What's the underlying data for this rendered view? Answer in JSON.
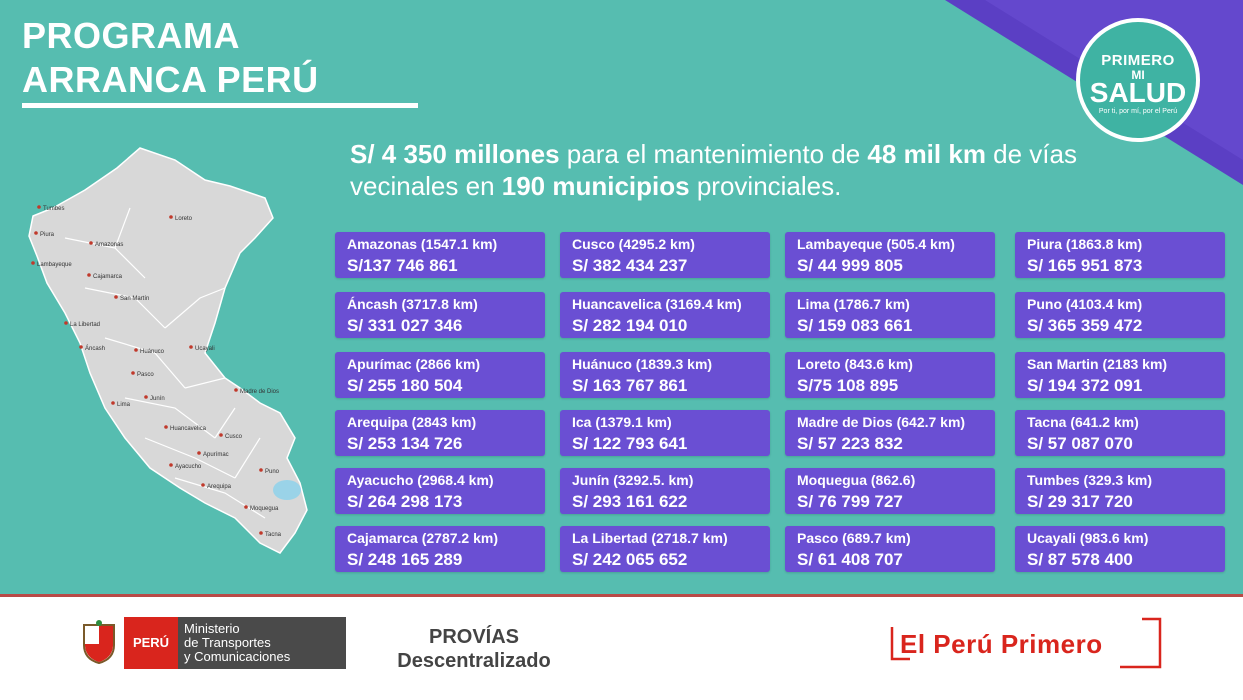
{
  "title": {
    "line1": "PROGRAMA",
    "line2": "ARRANCA PERÚ"
  },
  "seal": {
    "line1": "PRIMERO",
    "line2": "MI",
    "line3": "SALUD",
    "tagline": "Por ti, por mí, por el Perú"
  },
  "headline": {
    "amount": "S/ 4 350 millones",
    "text1": " para el mantenimiento de ",
    "distance": "48 mil km",
    "text2": " de vías vecinales en ",
    "municipalities": "190 municipios",
    "text3": " provinciales."
  },
  "map": {
    "labels": [
      "Tumbes",
      "Piura",
      "Lambayeque",
      "Amazonas",
      "Loreto",
      "Cajamarca",
      "San Martín",
      "La Libertad",
      "Áncash",
      "Huánuco",
      "Ucayali",
      "Pasco",
      "Lima",
      "Junín",
      "Huancavelica",
      "Madre de Dios",
      "Cusco",
      "Apurímac",
      "Ayacucho",
      "Arequipa",
      "Puno",
      "Moquegua",
      "Tacna"
    ]
  },
  "regions": [
    {
      "name": "Amazonas (1547.1 km)",
      "amount": "S/137 746 861"
    },
    {
      "name": "Áncash (3717.8 km)",
      "amount": "S/ 331 027 346"
    },
    {
      "name": "Apurímac (2866 km)",
      "amount": "S/ 255 180 504"
    },
    {
      "name": "Arequipa (2843 km)",
      "amount": "S/ 253 134 726"
    },
    {
      "name": "Ayacucho (2968.4 km)",
      "amount": "S/ 264 298 173"
    },
    {
      "name": "Cajamarca (2787.2 km)",
      "amount": "S/ 248 165 289"
    },
    {
      "name": "Cusco (4295.2 km)",
      "amount": "S/ 382 434 237"
    },
    {
      "name": "Huancavelica (3169.4 km)",
      "amount": "S/ 282 194 010"
    },
    {
      "name": "Huánuco (1839.3 km)",
      "amount": "S/ 163 767 861"
    },
    {
      "name": "Ica (1379.1 km)",
      "amount": "S/ 122 793 641"
    },
    {
      "name": "Junín (3292.5. km)",
      "amount": "S/ 293 161 622"
    },
    {
      "name": "La Libertad (2718.7 km)",
      "amount": "S/ 242 065 652"
    },
    {
      "name": "Lambayeque (505.4 km)",
      "amount": "S/ 44 999 805"
    },
    {
      "name": "Lima (1786.7 km)",
      "amount": "S/ 159 083 661"
    },
    {
      "name": "Loreto (843.6 km)",
      "amount": "S/75 108 895"
    },
    {
      "name": "Madre de Dios (642.7 km)",
      "amount": "S/ 57 223 832"
    },
    {
      "name": "Moquegua (862.6)",
      "amount": "S/ 76 799 727"
    },
    {
      "name": "Pasco (689.7 km)",
      "amount": "S/ 61 408 707"
    },
    {
      "name": "Piura (1863.8 km)",
      "amount": "S/ 165 951 873"
    },
    {
      "name": "Puno (4103.4 km)",
      "amount": "S/ 365 359 472"
    },
    {
      "name": "San Martin  (2183 km)",
      "amount": "S/ 194 372 091"
    },
    {
      "name": "Tacna (641.2 km)",
      "amount": "S/ 57 087 070"
    },
    {
      "name": "Tumbes (329.3 km)",
      "amount": "S/ 29 317 720"
    },
    {
      "name": "Ucayali (983.6 km)",
      "amount": "S/ 87 578 400"
    }
  ],
  "footer": {
    "peru_label": "PERÚ",
    "ministry_line1": "Ministerio",
    "ministry_line2": "de Transportes",
    "ministry_line3": "y Comunicaciones",
    "provias_line1": "PROVÍAS",
    "provias_line2": "Descentralizado",
    "slogan": "El Perú Primero"
  },
  "colors": {
    "background": "#56bdb0",
    "card": "#6a4fd3",
    "corner": "#5b3fc4",
    "brand_red": "#d9251d"
  }
}
